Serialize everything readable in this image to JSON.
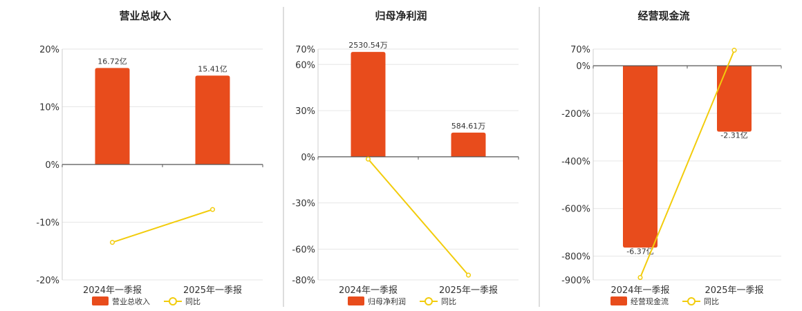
{
  "colors": {
    "bar": "#E84C1C",
    "line": "#F2CC0C",
    "grid": "#e6e6e6",
    "axis": "#555555",
    "separator": "#bbbbbb"
  },
  "chart_data": [
    {
      "type": "bar",
      "title": "营业总收入",
      "categories": [
        "2024年一季报",
        "2025年一季报"
      ],
      "bar_series": {
        "name": "营业总收入",
        "values": [
          16.72,
          15.41
        ],
        "labels": [
          "16.72亿",
          "15.41亿"
        ]
      },
      "line_series": {
        "name": "同比",
        "values": [
          -13.5,
          -7.8
        ]
      },
      "y_ticks": [
        "20%",
        "10%",
        "0%",
        "-10%",
        "-20%"
      ],
      "ylim": [
        -20,
        20
      ],
      "bar_max": 20,
      "grid": true,
      "legend_position": "bottom"
    },
    {
      "type": "bar",
      "title": "归母净利润",
      "categories": [
        "2024年一季报",
        "2025年一季报"
      ],
      "bar_series": {
        "name": "归母净利润",
        "values": [
          2530.54,
          584.61
        ],
        "labels": [
          "2530.54万",
          "584.61万"
        ]
      },
      "line_series": {
        "name": "同比",
        "values": [
          -1.5,
          -76.9
        ]
      },
      "y_ticks": [
        "70%",
        "60%",
        "30%",
        "0%",
        "-30%",
        "-60%",
        "-80%"
      ],
      "ylim": [
        -80,
        70
      ],
      "bar_max": 2600,
      "grid": true,
      "legend_position": "bottom"
    },
    {
      "type": "bar",
      "title": "经营现金流",
      "categories": [
        "2024年一季报",
        "2025年一季报"
      ],
      "bar_series": {
        "name": "经营现金流",
        "values": [
          -6.37,
          -2.31
        ],
        "labels": [
          "-6.37亿",
          "-2.31亿"
        ]
      },
      "line_series": {
        "name": "同比",
        "values": [
          -890,
          65
        ]
      },
      "y_ticks": [
        "70%",
        "0%",
        "-200%",
        "-400%",
        "-600%",
        "-800%",
        "-900%"
      ],
      "ylim": [
        -900,
        70
      ],
      "bar_max": 7.5,
      "grid": true,
      "legend_position": "bottom"
    }
  ]
}
